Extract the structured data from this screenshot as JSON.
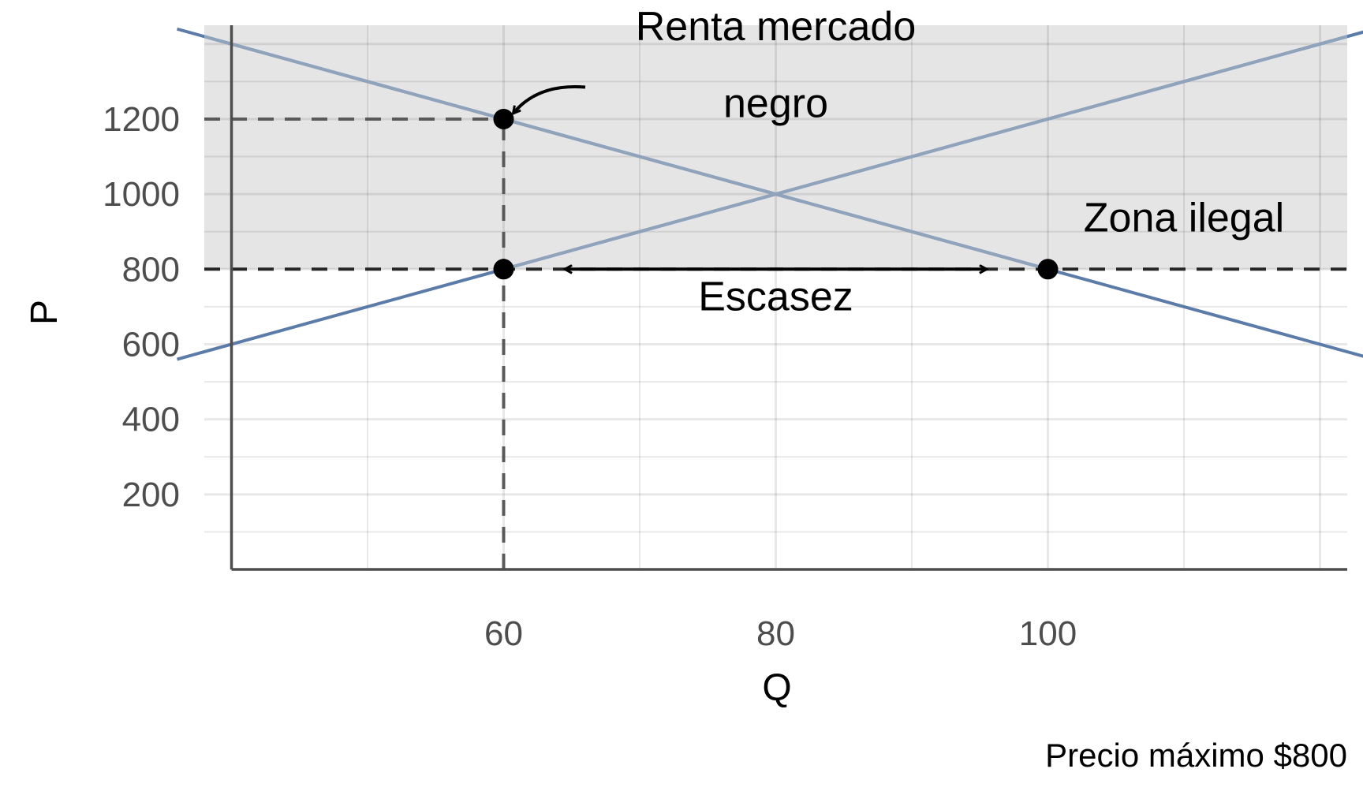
{
  "chart_data": {
    "type": "line",
    "title": "",
    "xlabel": "Q",
    "ylabel": "P",
    "caption": "Precio máximo $800",
    "xlim": [
      38,
      122
    ],
    "ylim": [
      0,
      1450
    ],
    "x_ticks": [
      60,
      80,
      100
    ],
    "x_tick_labels": [
      "60",
      "80",
      "100"
    ],
    "y_ticks": [
      200,
      400,
      600,
      800,
      1000,
      1200
    ],
    "y_tick_labels": [
      "200",
      "400",
      "600",
      "800",
      "1000",
      "1200"
    ],
    "grid": true,
    "series": [
      {
        "x": [
          36,
          124
        ],
        "y": [
          1440,
          560
        ],
        "color": "#5b7ba8"
      },
      {
        "x": [
          36,
          124
        ],
        "y": [
          560,
          1440
        ],
        "color": "#5b7ba8"
      }
    ],
    "price_ceiling": 800,
    "shaded_region": {
      "y_from": 800,
      "y_to": 1450,
      "color": "#e5e5e5"
    },
    "reference_lines": [
      {
        "orientation": "horizontal",
        "y": 1200,
        "x_from": 38,
        "x_to": 60
      },
      {
        "orientation": "vertical",
        "x": 60,
        "y_from": 0,
        "y_to": 1200
      },
      {
        "orientation": "horizontal",
        "y": 800,
        "x_from": 38,
        "x_to": 122
      }
    ],
    "points": [
      {
        "x": 60,
        "y": 1200
      },
      {
        "x": 60,
        "y": 800
      },
      {
        "x": 100,
        "y": 800
      }
    ],
    "annotations": [
      {
        "text": "Renta mercado",
        "x": 80,
        "y": 1410
      },
      {
        "text": "negro",
        "x": 80,
        "y": 1205
      },
      {
        "text": "Zona ilegal",
        "x": 110,
        "y": 900
      },
      {
        "text": "Escasez",
        "x": 80,
        "y": 690
      }
    ],
    "arrows": [
      {
        "kind": "curved",
        "from": [
          66,
          1285
        ],
        "to": [
          60.7,
          1215
        ]
      },
      {
        "kind": "double",
        "from": [
          64.5,
          800
        ],
        "to": [
          95.5,
          800
        ]
      }
    ]
  }
}
